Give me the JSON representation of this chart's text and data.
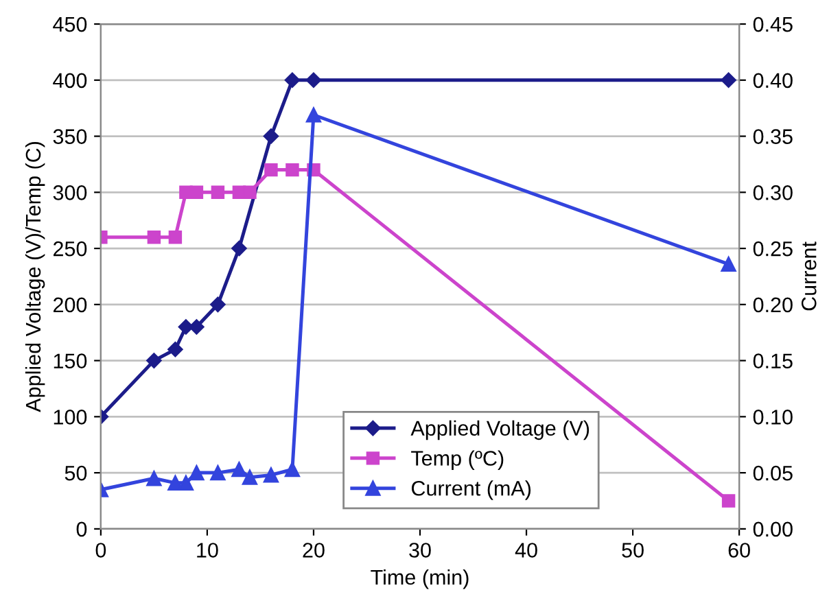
{
  "chart_data": {
    "type": "line",
    "xlabel": "Time (min)",
    "ylabel": "Applied Voltage (V)/Temp (C)",
    "y2label": "Current",
    "xlim": [
      0,
      60
    ],
    "xticks": [
      0,
      10,
      20,
      30,
      40,
      50,
      60
    ],
    "ylim": [
      0,
      450
    ],
    "yticks": [
      0,
      50,
      100,
      150,
      200,
      250,
      300,
      350,
      400,
      450
    ],
    "y2lim": [
      0,
      0.45
    ],
    "y2ticks": [
      {
        "value": 0,
        "label": "0.00"
      },
      {
        "value": 0.05,
        "label": "0.05"
      },
      {
        "value": 0.1,
        "label": "0.10"
      },
      {
        "value": 0.15,
        "label": "0.15"
      },
      {
        "value": 0.2,
        "label": "0.20"
      },
      {
        "value": 0.25,
        "label": "0.25"
      },
      {
        "value": 0.3,
        "label": "0.30"
      },
      {
        "value": 0.35,
        "label": "0.35"
      },
      {
        "value": 0.4,
        "label": "0.40"
      },
      {
        "value": 0.45,
        "label": "0.45"
      }
    ],
    "grid": "y",
    "legend": "bottom",
    "series": [
      {
        "name": "Applied Voltage (V)",
        "color": "#1c1c8a",
        "marker": "diamond",
        "x": [
          0,
          5,
          7,
          8,
          9,
          11,
          13,
          16,
          18,
          20,
          59
        ],
        "values": [
          100,
          150,
          160,
          180,
          180,
          200,
          250,
          350,
          400,
          400,
          400
        ]
      },
      {
        "name": "Temp (ºC)",
        "color": "#cc44cc",
        "marker": "square",
        "x": [
          0,
          5,
          7,
          8,
          9,
          11,
          13,
          14,
          16,
          18,
          20,
          59
        ],
        "values": [
          260,
          260,
          260,
          300,
          300,
          300,
          300,
          300,
          320,
          320,
          320,
          25
        ]
      },
      {
        "name": "Current (mA)",
        "color": "#3344dd",
        "marker": "triangle",
        "axis": "y2",
        "x": [
          0,
          5,
          7,
          8,
          9,
          11,
          13,
          14,
          16,
          18,
          20,
          59
        ],
        "values": [
          0.035,
          0.045,
          0.041,
          0.041,
          0.05,
          0.05,
          0.053,
          0.046,
          0.048,
          0.053,
          0.369,
          0.236
        ]
      }
    ]
  }
}
